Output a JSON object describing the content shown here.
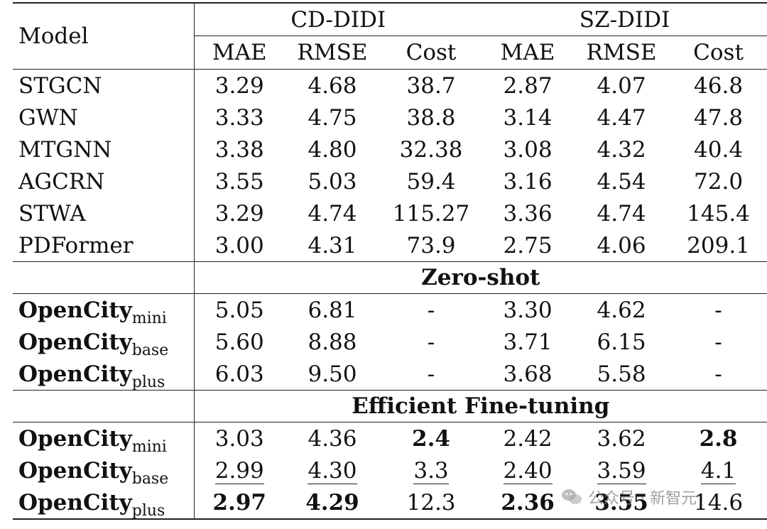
{
  "header": {
    "model_label": "Model",
    "groups": [
      "CD-DIDI",
      "SZ-DIDI"
    ],
    "metrics": [
      "MAE",
      "RMSE",
      "Cost",
      "MAE",
      "RMSE",
      "Cost"
    ]
  },
  "baselines": [
    {
      "model": "STGCN",
      "cells": [
        "3.29",
        "4.68",
        "38.7",
        "2.87",
        "4.07",
        "46.8"
      ]
    },
    {
      "model": "GWN",
      "cells": [
        "3.33",
        "4.75",
        "38.8",
        "3.14",
        "4.47",
        "47.8"
      ]
    },
    {
      "model": "MTGNN",
      "cells": [
        "3.38",
        "4.80",
        "32.38",
        "3.08",
        "4.32",
        "40.4"
      ]
    },
    {
      "model": "AGCRN",
      "cells": [
        "3.55",
        "5.03",
        "59.4",
        "3.16",
        "4.54",
        "72.0"
      ]
    },
    {
      "model": "STWA",
      "cells": [
        "3.29",
        "4.74",
        "115.27",
        "3.36",
        "4.74",
        "145.4"
      ]
    },
    {
      "model": "PDFormer",
      "cells": [
        "3.00",
        "4.31",
        "73.9",
        "2.75",
        "4.06",
        "209.1"
      ]
    }
  ],
  "sections": [
    {
      "title": "Zero-shot",
      "rows": [
        {
          "model": "OpenCity",
          "sub": "mini",
          "cells": [
            "5.05",
            "6.81",
            "-",
            "3.30",
            "4.62",
            "-"
          ]
        },
        {
          "model": "OpenCity",
          "sub": "base",
          "cells": [
            "5.60",
            "8.88",
            "-",
            "3.71",
            "6.15",
            "-"
          ]
        },
        {
          "model": "OpenCity",
          "sub": "plus",
          "cells": [
            "6.03",
            "9.50",
            "-",
            "3.68",
            "5.58",
            "-"
          ]
        }
      ]
    },
    {
      "title": "Efficient Fine-tuning",
      "rows": [
        {
          "model": "OpenCity",
          "sub": "mini",
          "cells": [
            "3.03",
            "4.36",
            "2.4",
            "2.42",
            "3.62",
            "2.8"
          ]
        },
        {
          "model": "OpenCity",
          "sub": "base",
          "cells": [
            "2.99",
            "4.30",
            "3.3",
            "2.40",
            "3.59",
            "4.1"
          ]
        },
        {
          "model": "OpenCity",
          "sub": "plus",
          "cells": [
            "2.97",
            "4.29",
            "12.3",
            "2.36",
            "3.55",
            "14.6"
          ]
        }
      ]
    }
  ],
  "watermark": "公众号 · 新智元"
}
